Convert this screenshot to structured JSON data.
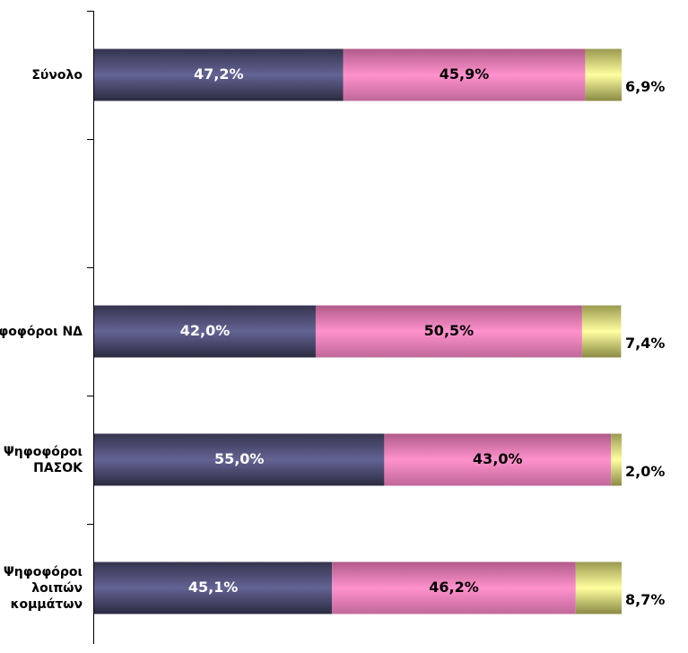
{
  "chart_data": {
    "type": "stacked-bar-horizontal",
    "categories": [
      "Σύνολο",
      null,
      "Ψηφοφόροι ΝΔ",
      "Ψηφοφόροι ΠΑΣΟΚ",
      "Ψηφοφόροι λοιπών κομμάτων"
    ],
    "series": [
      {
        "color": "#55557f",
        "values": [
          47.2,
          null,
          42.0,
          55.0,
          45.1
        ],
        "value_labels": [
          "47,2%",
          null,
          "42,0%",
          "55,0%",
          "45,1%"
        ]
      },
      {
        "color": "#ff8fca",
        "values": [
          45.9,
          null,
          50.5,
          43.0,
          46.2
        ],
        "value_labels": [
          "45,9%",
          null,
          "50,5%",
          "43,0%",
          "46,2%"
        ]
      },
      {
        "color": "#ffff99",
        "values": [
          6.9,
          null,
          7.4,
          2.0,
          8.7
        ],
        "value_labels": [
          "6,9%",
          null,
          "7,4%",
          "2,0%",
          "8,7%"
        ]
      }
    ],
    "xlim": [
      0,
      100
    ]
  }
}
